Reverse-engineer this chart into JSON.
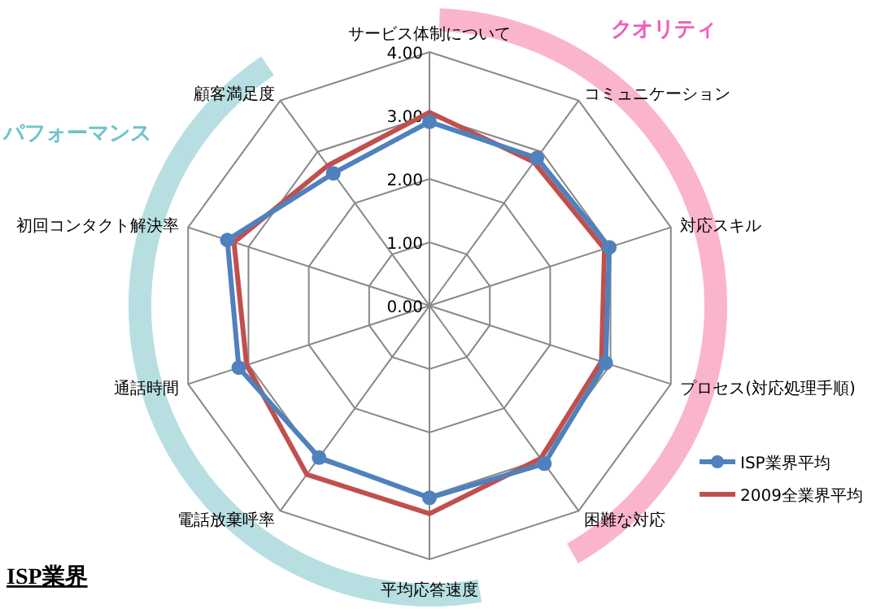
{
  "chart_data": {
    "type": "radar",
    "title": "ISP業界",
    "annotations": [
      "パフォーマンス",
      "クオリティ"
    ],
    "categories": [
      "サービス体制について",
      "コミュニケーション",
      "対応スキル",
      "プロセス(対応処理手順)",
      "困難な対応",
      "平均応答速度",
      "電話放棄呼率",
      "通話時間",
      "初回コンタクト解決率",
      "顧客満足度"
    ],
    "series": [
      {
        "name": "ISP業界平均",
        "color": "#4f81bd",
        "marker": "circle",
        "values": [
          2.9,
          2.88,
          2.98,
          2.92,
          3.08,
          3.03,
          2.96,
          3.16,
          3.35,
          2.58
        ]
      },
      {
        "name": "2009全業界平均",
        "color": "#c0504d",
        "marker": "none",
        "values": [
          3.05,
          2.8,
          2.9,
          2.85,
          2.98,
          3.28,
          3.29,
          3.03,
          3.24,
          2.73
        ]
      }
    ],
    "ylim": [
      0,
      4
    ],
    "yticks": [
      {
        "value": 0,
        "label": "0.00"
      },
      {
        "value": 1,
        "label": "1.00"
      },
      {
        "value": 2,
        "label": "2.00"
      },
      {
        "value": 3,
        "label": "3.00"
      },
      {
        "value": 4,
        "label": "4.00"
      }
    ],
    "grid": true,
    "legend": "right"
  }
}
